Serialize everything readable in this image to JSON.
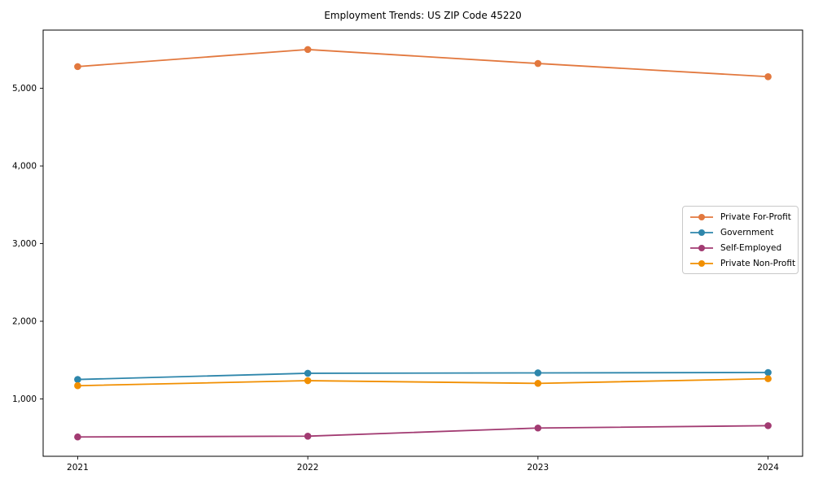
{
  "page": {
    "background": "#ffffff"
  },
  "chart_data": {
    "type": "line",
    "title": "Employment Trends: US ZIP Code 45220",
    "xlabel": "",
    "ylabel": "",
    "categories": [
      "2021",
      "2022",
      "2023",
      "2024"
    ],
    "x": [
      2021,
      2022,
      2023,
      2024
    ],
    "series": [
      {
        "name": "Private For-Profit",
        "color": "#E2783E",
        "values": [
          5280,
          5500,
          5320,
          5150
        ]
      },
      {
        "name": "Government",
        "color": "#2E86AB",
        "values": [
          1250,
          1330,
          1335,
          1340
        ]
      },
      {
        "name": "Self-Employed",
        "color": "#A23B72",
        "values": [
          510,
          520,
          625,
          655
        ]
      },
      {
        "name": "Private Non-Profit",
        "color": "#F18F01",
        "values": [
          1170,
          1235,
          1200,
          1260
        ]
      }
    ],
    "yticks": [
      1000,
      2000,
      3000,
      4000,
      5000
    ],
    "ytick_labels": [
      "1,000",
      "2,000",
      "3,000",
      "4,000",
      "5,000"
    ],
    "xlim": [
      2020.85,
      2024.15
    ],
    "ylim": [
      261,
      5750
    ],
    "grid": false,
    "frame": "box",
    "legend_position": "center right",
    "marker": "circle",
    "axis_color": "#000000",
    "legend_border_color": "#c9c9c9"
  }
}
